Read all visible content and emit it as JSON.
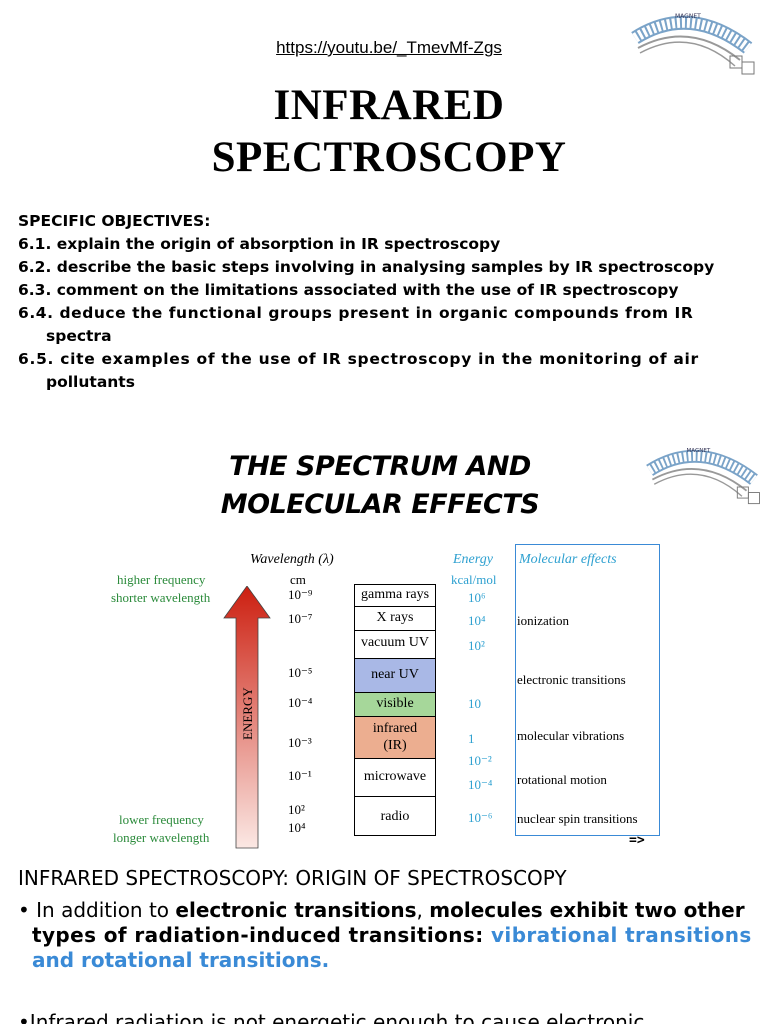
{
  "url": "https://youtu.be/_TmevMf-Zgs",
  "title_line1": "INFRARED",
  "title_line2": "SPECTROSCOPY",
  "logo_text": "MAGNET",
  "objectives": {
    "heading": "SPECIFIC OBJECTIVES:",
    "items": [
      "6.1.  explain the origin of absorption in IR spectroscopy",
      "6.2. describe the basic steps involving in analysing samples by IR spectroscopy",
      "6.3. comment on the limitations associated with the use of IR spectroscopy",
      "6.4. deduce the functional groups present in organic compounds from IR",
      "spectra",
      "6.5. cite examples of the use of IR spectroscopy in the monitoring of air",
      "pollutants"
    ]
  },
  "section_title_line1": "THE SPECTRUM AND",
  "section_title_line2": "MOLECULAR EFFECTS",
  "figure": {
    "higher_1": "higher frequency",
    "higher_2": "shorter wavelength",
    "lower_1": "lower frequency",
    "lower_2": "longer wavelength",
    "arrow_label": "ENERGY",
    "wavelength_header": "Wavelength (λ)",
    "wavelength_unit": "cm",
    "energy_header": "Energy",
    "energy_unit": "kcal/mol",
    "effects_header": "Molecular effects",
    "wavelengths": [
      "10⁻⁹",
      "10⁻⁷",
      "10⁻⁵",
      "10⁻⁴",
      "10⁻³",
      "10⁻¹",
      "10²",
      "10⁴"
    ],
    "bands": [
      "gamma rays",
      "X rays",
      "vacuum UV",
      "near UV",
      "visible",
      "infrared",
      "(IR)",
      "microwave",
      "radio"
    ],
    "energies": [
      "10⁶",
      "10⁴",
      "10²",
      "10",
      "1",
      "10⁻²",
      "10⁻⁴",
      "10⁻⁶"
    ],
    "effects": [
      "ionization",
      "electronic transitions",
      "molecular vibrations",
      "rotational motion",
      "nuclear spin transitions"
    ],
    "band_colors": {
      "near_uv": "#a9b8e6",
      "visible": "#a6d79a",
      "infrared": "#ecae90"
    }
  },
  "next_arrow": "=>",
  "origin_heading": "INFRARED SPECTROSCOPY: ORIGIN OF SPECTROSCOPY",
  "para1": {
    "bullet": "•",
    "t1": " In addition to ",
    "t2": "electronic transitions",
    "t3": ", ",
    "t4": "molecules exhibit two other",
    "t5": "types of radiation-induced transitions: ",
    "t6": "vibrational transitions",
    "t7": "and rotational transitions."
  },
  "para2": "•Infrared radiation is not energetic enough to cause electronic"
}
